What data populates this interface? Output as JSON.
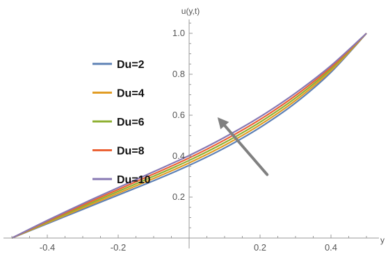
{
  "chart_data": {
    "type": "line",
    "title": "",
    "xlabel": "y",
    "ylabel": "u(y,t)",
    "xlim": [
      -0.5,
      0.53
    ],
    "ylim": [
      0.0,
      1.06
    ],
    "grid": false,
    "legend_position": "left",
    "x_ticks": [
      -0.4,
      -0.2,
      0.2,
      0.4
    ],
    "x_tick_labels": [
      "-0.4",
      "-0.2",
      "0.2",
      "0.4"
    ],
    "y_ticks": [
      0.2,
      0.4,
      0.6,
      0.8,
      1.0
    ],
    "y_tick_labels": [
      "0.2",
      "0.4",
      "0.6",
      "0.8",
      "1.0"
    ],
    "x": [
      -0.5,
      -0.4,
      -0.3,
      -0.2,
      -0.1,
      0.0,
      0.1,
      0.2,
      0.3,
      0.4,
      0.5
    ],
    "series": [
      {
        "name": "Du=2",
        "color": "#5e81b5",
        "values": [
          0.0,
          0.07,
          0.14,
          0.21,
          0.28,
          0.355,
          0.44,
          0.54,
          0.66,
          0.81,
          1.0
        ]
      },
      {
        "name": "Du=4",
        "color": "#e19c24",
        "values": [
          0.0,
          0.074,
          0.147,
          0.219,
          0.291,
          0.367,
          0.453,
          0.553,
          0.672,
          0.818,
          1.0
        ]
      },
      {
        "name": "Du=6",
        "color": "#8fb032",
        "values": [
          0.0,
          0.078,
          0.154,
          0.228,
          0.302,
          0.379,
          0.466,
          0.566,
          0.684,
          0.826,
          1.0
        ]
      },
      {
        "name": "Du=8",
        "color": "#eb6235",
        "values": [
          0.0,
          0.082,
          0.161,
          0.237,
          0.313,
          0.391,
          0.479,
          0.579,
          0.696,
          0.834,
          1.0
        ]
      },
      {
        "name": "Du=10",
        "color": "#8778b3",
        "values": [
          0.0,
          0.086,
          0.168,
          0.246,
          0.324,
          0.403,
          0.492,
          0.592,
          0.708,
          0.842,
          1.0
        ]
      }
    ],
    "annotation_arrow": {
      "from": [
        0.22,
        0.31
      ],
      "to": [
        0.08,
        0.59
      ],
      "color": "#808080"
    }
  }
}
